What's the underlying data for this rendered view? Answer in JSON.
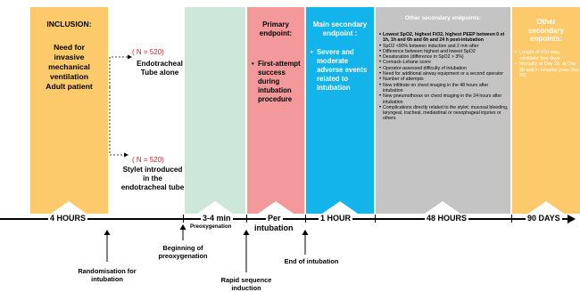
{
  "inclusion": {
    "title": "INCLUSION:",
    "lines": [
      "Need for",
      "invasive",
      "mechanical",
      "ventilation",
      "Adult patient"
    ]
  },
  "arms": [
    {
      "n": "( N = 520)",
      "lines": [
        "Endotracheal",
        "Tube alone"
      ]
    },
    {
      "n": "( N = 520)",
      "lines": [
        "Stylet introduced",
        "in the",
        "endotracheal tube"
      ]
    }
  ],
  "primary": {
    "title_lines": [
      "Primary",
      "endpoint:"
    ],
    "items": [
      "First-attempt success during intubation procedure"
    ]
  },
  "main_secondary": {
    "title_lines": [
      "Main secondary",
      "endpoint :"
    ],
    "items": [
      "Severe and moderate adverse events related to intubation"
    ]
  },
  "other_secondary": {
    "title": "Other secondary endpoints:",
    "items": [
      {
        "text": "Lowest SpO2, highest FiO2, highest PEEP between 0 et 1h, 1h and 6h and 6h and 24 h post-intubation",
        "bold": true
      },
      {
        "text": "SpO2 <90% between induction and 2 min after",
        "bold": false
      },
      {
        "text": "Difference between highest and lowest SpO2",
        "bold": false
      },
      {
        "text": "Desaturation (difference in SpO2 > 3%)",
        "bold": false
      },
      {
        "text": "Cormack-Lehane score",
        "bold": false
      },
      {
        "text": "Operator-assessed difficulty of intubation",
        "bold": false
      },
      {
        "text": "Need for additional airway equipment or a second operator",
        "bold": false
      },
      {
        "text": "Number of attempts",
        "bold": false
      },
      {
        "text": "New infiltrate on chest imaging in the 48 hours after intubation",
        "bold": false
      },
      {
        "text": "New pneumothorax on chest imaging in the 24 hours after intubation",
        "bold": false
      },
      {
        "text": "Complications directly related to the stylet: mucosal bleeding, laryngeal, tracheal, mediastinal or oesophageal injuries or others",
        "bold": false
      }
    ]
  },
  "late_secondary": {
    "title_lines": [
      "Other",
      "secondary",
      "enpoints:"
    ],
    "items": [
      "Lenght of ICU stay, ventilator free days",
      "Mortality at Day 28, at Day 90 and in hospital (max Day 90)"
    ]
  },
  "timeline": {
    "labels": {
      "four_hours": "4 HOURS",
      "three_four_min": "3-4 min",
      "preoxygenation": "Preoxygenation",
      "per": "Per",
      "intubation": "intubation",
      "one_hour": "1 HOUR",
      "forty_eight": "48 HOURS",
      "ninety_days": "90 DAYS"
    },
    "events": {
      "randomisation": [
        "Randomisation for",
        "intubation"
      ],
      "beginning": [
        "Beginning of",
        "preoxygenation"
      ],
      "rsi": [
        "Rapid sequence",
        "induction"
      ],
      "end": [
        "End of intubation"
      ]
    }
  },
  "colors": {
    "inclusion": "#fcca6a",
    "preox": "#cde8d8",
    "primary": "#f4999b",
    "main_secondary": "#12b4eb",
    "other_secondary": "#c4c4c4",
    "late": "#fcca6a",
    "n_label": "#d42020"
  }
}
